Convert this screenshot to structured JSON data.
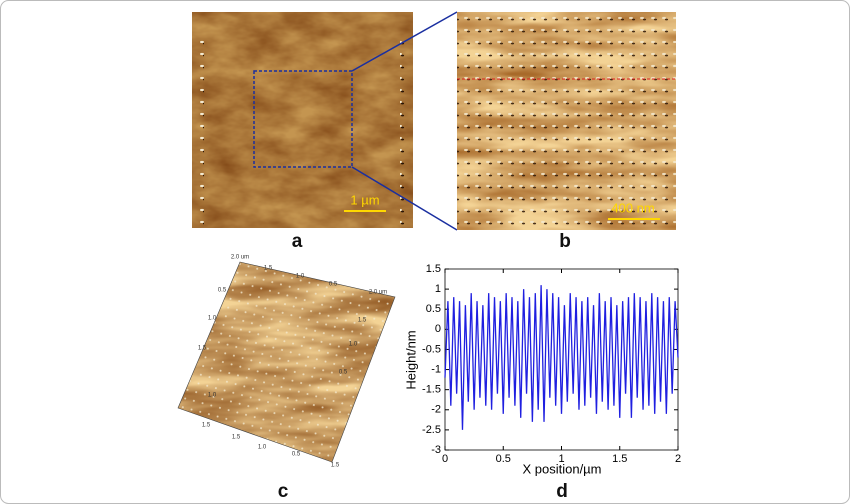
{
  "panels": {
    "a": {
      "label": "a",
      "scale_bar": "1 µm"
    },
    "b": {
      "label": "b",
      "scale_bar": "400 nm"
    },
    "c": {
      "label": "c",
      "axis_labels": [
        "2.0 um",
        "1.5",
        "1.0",
        "0.5",
        "0.5",
        "1.0",
        "1.5",
        "2.0 um",
        "1.5",
        "1.0",
        "0.5",
        "1.0",
        "1.5",
        "1.5",
        "1.0",
        "0.5",
        "1.5"
      ]
    },
    "d": {
      "label": "d"
    }
  },
  "chart_data": {
    "type": "line",
    "x_label": "X position/µm",
    "y_label": "Height/nm",
    "color": "#1f1fe0",
    "x": [
      0,
      0.025,
      0.05,
      0.075,
      0.1,
      0.125,
      0.15,
      0.175,
      0.2,
      0.225,
      0.25,
      0.275,
      0.3,
      0.325,
      0.35,
      0.375,
      0.4,
      0.425,
      0.45,
      0.475,
      0.5,
      0.525,
      0.55,
      0.575,
      0.6,
      0.625,
      0.65,
      0.675,
      0.7,
      0.725,
      0.75,
      0.775,
      0.8,
      0.825,
      0.85,
      0.875,
      0.9,
      0.925,
      0.95,
      0.975,
      1,
      1.025,
      1.05,
      1.075,
      1.1,
      1.125,
      1.15,
      1.175,
      1.2,
      1.225,
      1.25,
      1.275,
      1.3,
      1.325,
      1.35,
      1.375,
      1.4,
      1.425,
      1.45,
      1.475,
      1.5,
      1.525,
      1.55,
      1.575,
      1.6,
      1.625,
      1.65,
      1.675,
      1.7,
      1.725,
      1.75,
      1.775,
      1.8,
      1.825,
      1.85,
      1.875,
      1.9,
      1.925,
      1.95,
      1.975,
      2
    ],
    "values": [
      -1.2,
      0.7,
      -1.9,
      0.8,
      -1.6,
      0.7,
      -2.5,
      0.6,
      -1.8,
      0.9,
      -2.0,
      0.7,
      -1.7,
      0.6,
      -1.9,
      0.9,
      -2.0,
      0.8,
      -1.6,
      0.7,
      -2.1,
      0.9,
      -1.7,
      0.8,
      -1.9,
      0.7,
      -2.2,
      1.0,
      -1.6,
      0.8,
      -2.3,
      0.9,
      -2.0,
      1.1,
      -2.3,
      1.0,
      -1.7,
      0.9,
      -1.9,
      0.8,
      -2.1,
      0.6,
      -1.8,
      0.9,
      -1.6,
      0.8,
      -2.0,
      0.7,
      -1.9,
      0.8,
      -1.7,
      0.6,
      -2.1,
      0.9,
      -1.8,
      0.7,
      -2.0,
      0.8,
      -1.9,
      0.6,
      -2.2,
      0.7,
      -1.6,
      0.8,
      -2.2,
      0.9,
      -1.7,
      0.8,
      -2.0,
      0.7,
      -1.9,
      0.9,
      -2.1,
      0.8,
      -1.8,
      0.7,
      -2.1,
      0.8,
      -1.6,
      0.7,
      -0.7
    ],
    "xlim": [
      0,
      2
    ],
    "xticks": [
      0,
      0.5,
      1,
      1.5,
      2
    ],
    "ylim": [
      -3,
      1.5
    ],
    "yticks": [
      -3,
      -2.5,
      -2,
      -1.5,
      -1,
      -0.5,
      0,
      0.5,
      1,
      1.5
    ]
  }
}
